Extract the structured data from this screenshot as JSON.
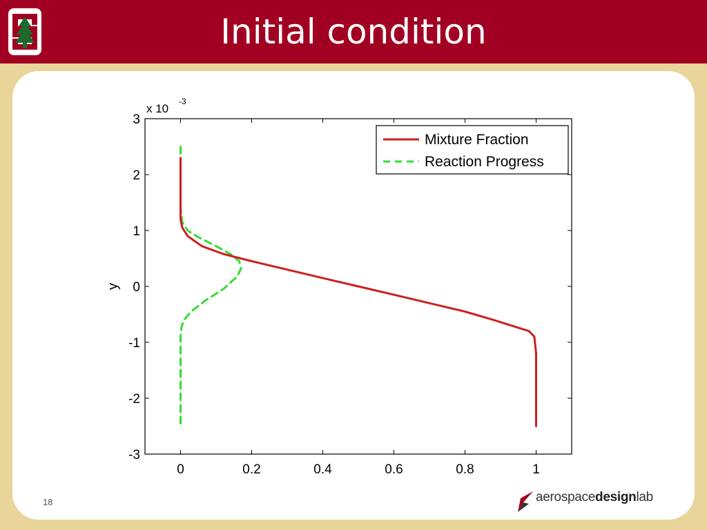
{
  "slide": {
    "title": "Initial condition",
    "page_number": "18",
    "brand": {
      "part1": "aerospace",
      "part2": "design",
      "part3": "lab"
    }
  },
  "colors": {
    "header": "#a10022",
    "frame": "#e9d49a",
    "mixture": "#cc1f1f",
    "reaction": "#33dd33"
  },
  "chart_data": {
    "type": "line",
    "title": "",
    "xlabel": "",
    "ylabel": "y",
    "y_scale_label": "x 10",
    "y_scale_exponent": "-3",
    "xlim": [
      -0.1,
      1.1
    ],
    "ylim": [
      -3,
      3
    ],
    "xticks": [
      0,
      0.2,
      0.4,
      0.6,
      0.8,
      1
    ],
    "xtick_labels": [
      "0",
      "0.2",
      "0.4",
      "0.6",
      "0.8",
      "1"
    ],
    "yticks": [
      -3,
      -2,
      -1,
      0,
      1,
      2,
      3
    ],
    "ytick_labels": [
      "-3",
      "-2",
      "-1",
      "0",
      "1",
      "2",
      "3"
    ],
    "legend_position": "top-right",
    "series": [
      {
        "name": "Mixture Fraction",
        "style": "solid",
        "x": [
          0,
          0,
          0,
          0,
          0.005,
          0.02,
          0.06,
          0.12,
          0.2,
          0.3,
          0.4,
          0.5,
          0.6,
          0.7,
          0.8,
          0.88,
          0.94,
          0.98,
          0.995,
          1,
          1,
          1
        ],
        "y": [
          2.3,
          1.8,
          1.4,
          1.2,
          1.05,
          0.9,
          0.72,
          0.58,
          0.45,
          0.3,
          0.15,
          0.0,
          -0.15,
          -0.3,
          -0.45,
          -0.6,
          -0.72,
          -0.8,
          -0.9,
          -1.2,
          -1.8,
          -2.5
        ]
      },
      {
        "name": "Reaction Progress",
        "style": "dashed",
        "x": [
          0,
          0,
          0,
          0.005,
          0.02,
          0.05,
          0.1,
          0.14,
          0.165,
          0.17,
          0.16,
          0.12,
          0.07,
          0.03,
          0.01,
          0.003,
          0,
          0,
          0,
          0
        ],
        "y": [
          2.5,
          1.9,
          1.4,
          1.15,
          1.0,
          0.88,
          0.72,
          0.58,
          0.45,
          0.32,
          0.18,
          -0.05,
          -0.25,
          -0.45,
          -0.6,
          -0.72,
          -0.9,
          -1.3,
          -1.9,
          -2.45
        ]
      }
    ]
  }
}
